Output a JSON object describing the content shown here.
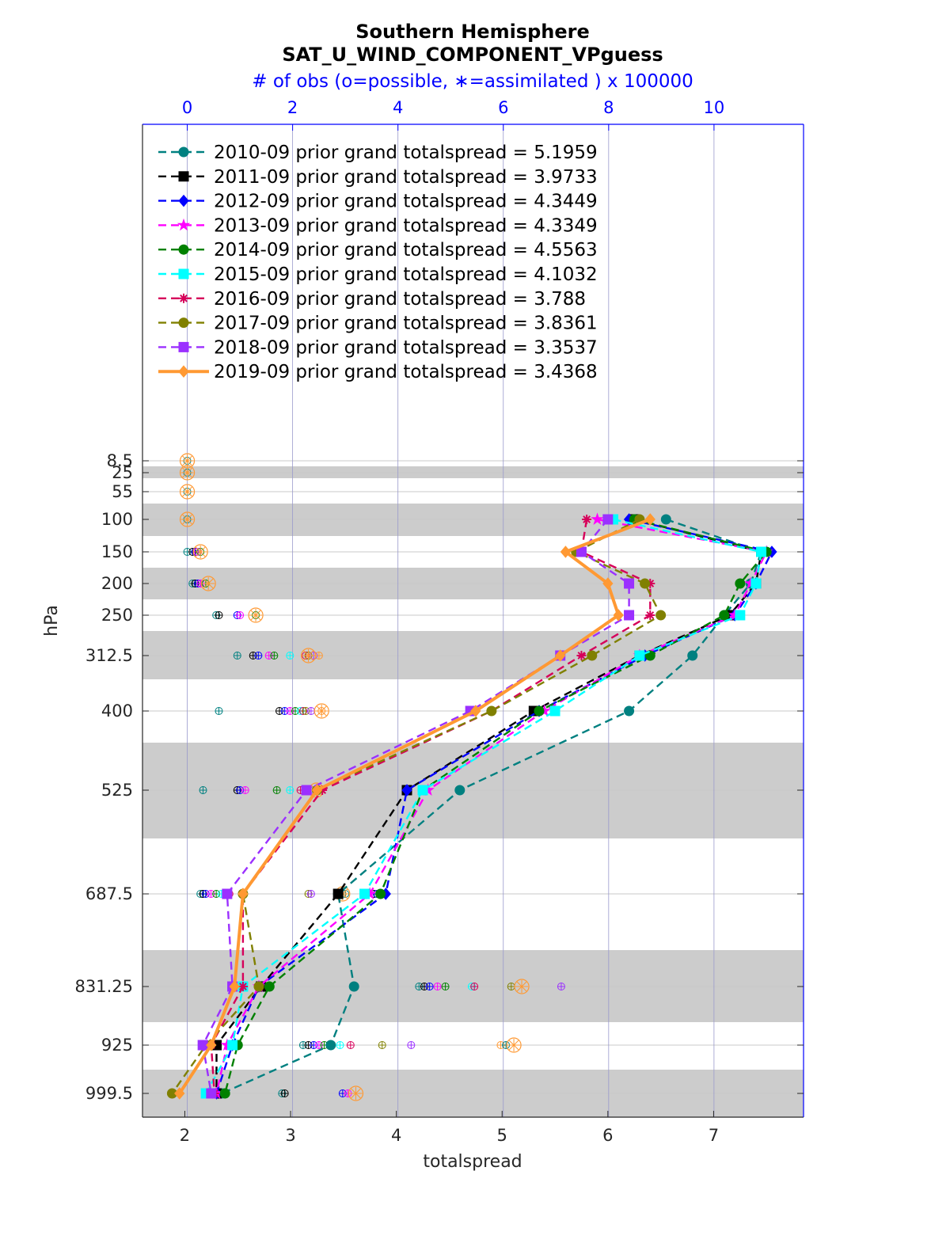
{
  "chart_data": {
    "type": "line",
    "title": "Southern Hemisphere",
    "subtitle": "SAT_U_WIND_COMPONENT_VPguess",
    "top_axis_label": "# of obs (o=possible, ∗=assimilated ) x 100000",
    "xlabel": "totalspread",
    "ylabel": "hPa",
    "xlim": [
      1.6,
      7.85
    ],
    "top_xlim": [
      -0.85,
      11.7
    ],
    "x_ticks": [
      "2",
      "3",
      "4",
      "5",
      "6",
      "7"
    ],
    "top_x_ticks": [
      "0",
      "2",
      "4",
      "6",
      "8",
      "10"
    ],
    "y_ticks": [
      "8.5",
      "25",
      "55",
      "100",
      "150",
      "200",
      "250",
      "312.5",
      "400",
      "525",
      "687.5",
      "831.25",
      "925",
      "999.5"
    ],
    "levels": [
      100,
      150,
      200,
      250,
      312.5,
      400,
      525,
      687.5,
      831.25,
      925,
      999.5
    ],
    "grid": "on",
    "legend_position": "top-left",
    "colors": {
      "axes": "#262626",
      "top_axis": "#0000ff",
      "band": "#cccccc",
      "grid": "#d0d0d0",
      "vertical_grid": "#aaaadd"
    },
    "series": [
      {
        "name": "2010-09 prior grand totalspread = 5.1959",
        "color": "#008080",
        "marker": "circle",
        "style": "dashed",
        "values": [
          6.55,
          7.45,
          7.35,
          7.1,
          6.8,
          6.2,
          4.6,
          3.45,
          3.6,
          3.38,
          2.35
        ]
      },
      {
        "name": "2011-09 prior grand totalspread = 3.9733",
        "color": "#000000",
        "marker": "square",
        "style": "dashed",
        "values": [
          6.25,
          7.45,
          7.4,
          7.15,
          6.3,
          5.3,
          4.1,
          3.45,
          2.72,
          2.3,
          2.3
        ]
      },
      {
        "name": "2012-09 prior grand totalspread = 4.3449",
        "color": "#0000ff",
        "marker": "diamond",
        "style": "dashed",
        "values": [
          6.2,
          7.55,
          7.4,
          7.2,
          6.35,
          5.35,
          4.1,
          3.9,
          2.7,
          2.45,
          2.3
        ]
      },
      {
        "name": "2013-09 prior grand totalspread = 4.3349",
        "color": "#ff00ff",
        "marker": "star",
        "style": "dashed",
        "values": [
          5.9,
          7.5,
          7.35,
          7.2,
          6.3,
          5.4,
          4.3,
          3.75,
          2.7,
          2.4,
          2.3
        ]
      },
      {
        "name": "2014-09 prior grand totalspread = 4.5563",
        "color": "#008000",
        "marker": "hexagram",
        "style": "dashed",
        "values": [
          6.25,
          7.5,
          7.25,
          7.1,
          6.4,
          5.35,
          4.25,
          3.85,
          2.8,
          2.5,
          2.38
        ]
      },
      {
        "name": "2015-09 prior grand totalspread = 4.1032",
        "color": "#00ffff",
        "marker": "square",
        "style": "dashed",
        "values": [
          6.05,
          7.45,
          7.4,
          7.25,
          6.3,
          5.5,
          4.25,
          3.7,
          2.55,
          2.45,
          2.2
        ]
      },
      {
        "name": "2016-09 prior grand totalspread = 3.788",
        "color": "#d6005a",
        "marker": "asterisk",
        "style": "dashed",
        "values": [
          5.8,
          5.75,
          6.4,
          6.4,
          5.75,
          4.9,
          3.3,
          2.55,
          2.55,
          2.25,
          2.28
        ]
      },
      {
        "name": "2017-09 prior grand totalspread = 3.8361",
        "color": "#808000",
        "marker": "circle",
        "style": "dashed",
        "values": [
          6.3,
          5.7,
          6.35,
          6.5,
          5.85,
          4.9,
          3.25,
          2.55,
          2.7,
          2.2,
          1.88
        ]
      },
      {
        "name": "2018-09 prior grand totalspread = 3.3537",
        "color": "#9b30ff",
        "marker": "square",
        "style": "dashed",
        "values": [
          6.0,
          5.75,
          6.2,
          6.2,
          5.55,
          4.7,
          3.15,
          2.4,
          2.45,
          2.17,
          2.25
        ]
      },
      {
        "name": "2019-09 prior grand totalspread = 3.4368",
        "color": "#ff9933",
        "marker": "diamond",
        "style": "solid",
        "values": [
          6.4,
          5.6,
          6.0,
          6.1,
          5.55,
          4.75,
          3.25,
          2.55,
          2.47,
          2.25,
          1.95
        ]
      }
    ],
    "obs_counts_x100000": {
      "note_levels": [
        "8.5",
        "25",
        "55",
        "100",
        "150",
        "200",
        "250",
        "312.5",
        "400",
        "525",
        "687.5",
        "831.25",
        "925",
        "999.5"
      ],
      "markers": [
        {
          "level": "8.5",
          "values": [
            0.0
          ],
          "big": [
            0.0
          ]
        },
        {
          "level": "25",
          "values": [
            0.0
          ],
          "big": [
            0.0
          ]
        },
        {
          "level": "55",
          "values": [
            0.0
          ],
          "big": [
            0.0
          ]
        },
        {
          "level": "100",
          "values": [
            0.0
          ],
          "big": [
            0.0
          ]
        },
        {
          "level": "150",
          "values": [
            0.0,
            0.1,
            0.15,
            0.2,
            0.25
          ],
          "big": [
            0.25
          ]
        },
        {
          "level": "200",
          "values": [
            0.1,
            0.15,
            0.2,
            0.25,
            0.35
          ],
          "big": [
            0.4
          ]
        },
        {
          "level": "250",
          "values": [
            0.55,
            0.6,
            0.95,
            1.0,
            1.3
          ],
          "big": [
            1.3
          ]
        },
        {
          "level": "312.5",
          "values": [
            0.95,
            1.25,
            1.35,
            1.55,
            1.65,
            1.95,
            2.25,
            2.3,
            2.4,
            2.5
          ],
          "big": [
            2.3
          ]
        },
        {
          "level": "400",
          "values": [
            0.6,
            1.75,
            1.85,
            1.95,
            2.05,
            2.15,
            2.2,
            2.25,
            2.35,
            2.55
          ],
          "big": [
            2.55
          ]
        },
        {
          "level": "525",
          "values": [
            0.3,
            0.95,
            1.0,
            1.1,
            1.7,
            1.95,
            2.15,
            2.25,
            2.4,
            2.45
          ],
          "big": [
            2.45
          ]
        },
        {
          "level": "687.5",
          "values": [
            0.25,
            0.3,
            0.35,
            0.45,
            0.55,
            0.65,
            0.8,
            2.3,
            2.35,
            2.95,
            3.0,
            3.55,
            3.6
          ],
          "big": [
            2.95
          ]
        },
        {
          "level": "831.25",
          "values": [
            4.4,
            4.5,
            4.6,
            4.75,
            4.9,
            5.4,
            5.45,
            6.15,
            7.1
          ],
          "big": [
            6.35
          ]
        },
        {
          "level": "925",
          "values": [
            2.2,
            2.3,
            2.4,
            2.5,
            2.6,
            2.9,
            3.1,
            3.7,
            4.25,
            5.95,
            6.05
          ],
          "big": [
            6.2
          ]
        },
        {
          "level": "999.5",
          "values": [
            1.8,
            1.85,
            2.95,
            3.05
          ],
          "big": [
            3.2
          ]
        }
      ]
    }
  }
}
